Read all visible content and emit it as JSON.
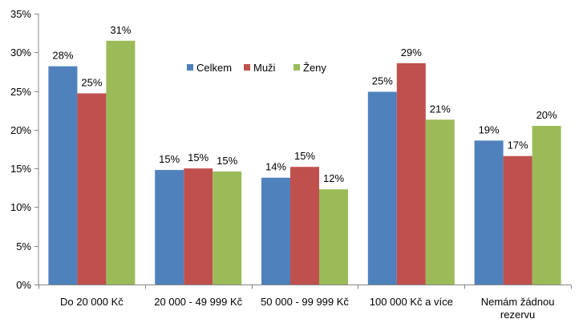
{
  "chart_data": {
    "type": "bar",
    "categories": [
      [
        "Do 20 000 Kč"
      ],
      [
        "20 000 - 49 999 Kč"
      ],
      [
        "50 000 - 99 999 Kč"
      ],
      [
        "100 000 Kč a více"
      ],
      [
        "Nemám žádnou",
        "rezervu"
      ]
    ],
    "series": [
      {
        "name": "Celkem",
        "color": "#4F81BD",
        "values": [
          28.2,
          14.8,
          13.8,
          24.9,
          18.6
        ],
        "labels": [
          "28%",
          "15%",
          "14%",
          "25%",
          "19%"
        ]
      },
      {
        "name": "Muži",
        "color": "#C0504D",
        "values": [
          24.7,
          15.0,
          15.2,
          28.6,
          16.6
        ],
        "labels": [
          "25%",
          "15%",
          "15%",
          "29%",
          "17%"
        ]
      },
      {
        "name": "Ženy",
        "color": "#9BBB59",
        "values": [
          31.5,
          14.6,
          12.3,
          21.3,
          20.5
        ],
        "labels": [
          "31%",
          "15%",
          "12%",
          "21%",
          "20%"
        ]
      }
    ],
    "ylim": [
      0,
      35
    ],
    "yticks": [
      {
        "value": 0,
        "label": "0%"
      },
      {
        "value": 5,
        "label": "5%"
      },
      {
        "value": 10,
        "label": "10%"
      },
      {
        "value": 15,
        "label": "15%"
      },
      {
        "value": 20,
        "label": "20%"
      },
      {
        "value": 25,
        "label": "25%"
      },
      {
        "value": 30,
        "label": "30%"
      },
      {
        "value": 35,
        "label": "35%"
      }
    ],
    "grid": false,
    "legend_position": "inside-top-center",
    "title": "",
    "xlabel": "",
    "ylabel": ""
  }
}
